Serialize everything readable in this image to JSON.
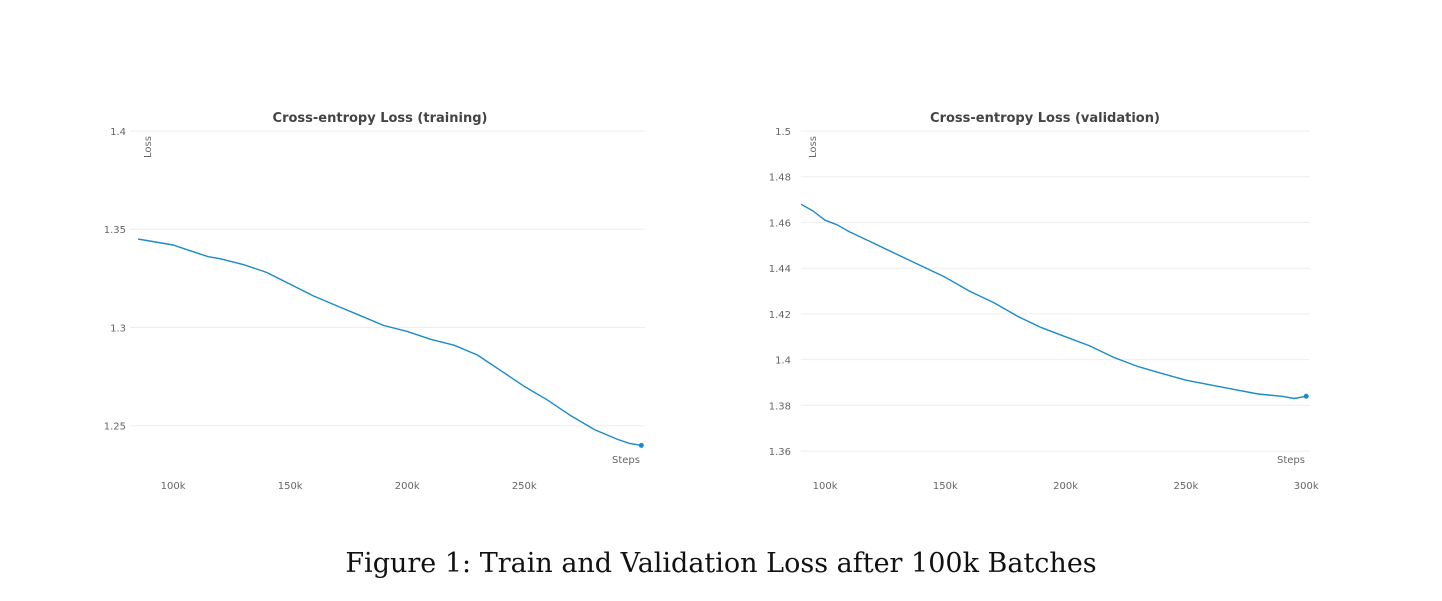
{
  "caption": "Figure 1: Train and Validation Loss after 100k Batches",
  "colors": {
    "series": "#1a8bc9",
    "grid": "#eeeeee",
    "text": "#666666",
    "title": "#444444"
  },
  "chart_data": [
    {
      "type": "line",
      "title": "Cross-entropy Loss (training)",
      "xlabel": "Steps",
      "ylabel": "Loss",
      "grid": true,
      "xlim": [
        85000,
        302000
      ],
      "ylim": [
        1.23,
        1.4
      ],
      "xticks": [
        100000,
        150000,
        200000,
        250000
      ],
      "xtick_labels": [
        "100k",
        "150k",
        "200k",
        "250k"
      ],
      "yticks": [
        1.25,
        1.3,
        1.35,
        1.4
      ],
      "ytick_labels": [
        "1.25",
        "1.3",
        "1.35",
        "1.4"
      ],
      "series": [
        {
          "x": [
            85000,
            90000,
            100000,
            105000,
            110000,
            115000,
            120000,
            130000,
            135000,
            140000,
            150000,
            160000,
            170000,
            180000,
            190000,
            200000,
            210000,
            220000,
            230000,
            240000,
            250000,
            260000,
            270000,
            280000,
            290000,
            295000,
            300000
          ],
          "y": [
            1.345,
            1.344,
            1.342,
            1.34,
            1.338,
            1.336,
            1.335,
            1.332,
            1.33,
            1.328,
            1.322,
            1.316,
            1.311,
            1.306,
            1.301,
            1.298,
            1.294,
            1.291,
            1.286,
            1.278,
            1.27,
            1.263,
            1.255,
            1.248,
            1.243,
            1.241,
            1.24
          ]
        }
      ]
    },
    {
      "type": "line",
      "title": "Cross-entropy Loss (validation)",
      "xlabel": "Steps",
      "ylabel": "Loss",
      "grid": true,
      "xlim": [
        90000,
        302000
      ],
      "ylim": [
        1.35,
        1.5
      ],
      "xticks": [
        100000,
        150000,
        200000,
        250000,
        300000
      ],
      "xtick_labels": [
        "100k",
        "150k",
        "200k",
        "250k",
        "300k"
      ],
      "yticks": [
        1.36,
        1.38,
        1.4,
        1.42,
        1.44,
        1.46,
        1.48,
        1.5
      ],
      "ytick_labels": [
        "1.36",
        "1.38",
        "1.4",
        "1.42",
        "1.44",
        "1.46",
        "1.48",
        "1.5"
      ],
      "series": [
        {
          "x": [
            90000,
            95000,
            100000,
            105000,
            110000,
            120000,
            130000,
            140000,
            150000,
            160000,
            170000,
            180000,
            190000,
            200000,
            210000,
            220000,
            230000,
            240000,
            250000,
            260000,
            270000,
            280000,
            290000,
            295000,
            300000
          ],
          "y": [
            1.468,
            1.465,
            1.461,
            1.459,
            1.456,
            1.451,
            1.446,
            1.441,
            1.436,
            1.43,
            1.425,
            1.419,
            1.414,
            1.41,
            1.406,
            1.401,
            1.397,
            1.394,
            1.391,
            1.389,
            1.387,
            1.385,
            1.384,
            1.383,
            1.384
          ]
        }
      ]
    }
  ]
}
